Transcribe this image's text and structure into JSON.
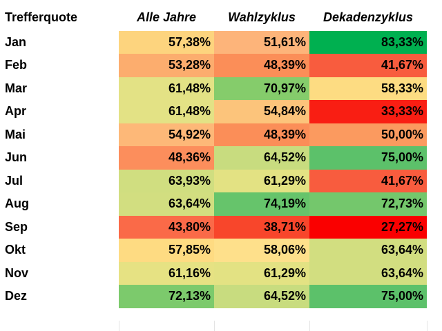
{
  "chart_data": {
    "type": "table",
    "corner_label": "Trefferquote",
    "columns": [
      "Alle Jahre",
      "Wahlzyklus",
      "Dekadenzyklus"
    ],
    "rows": [
      {
        "label": "Jan",
        "values": [
          "57,38%",
          "51,61%",
          "83,33%"
        ],
        "colors": [
          "#fdd47e",
          "#fdb47a",
          "#00b050"
        ]
      },
      {
        "label": "Feb",
        "values": [
          "53,28%",
          "48,39%",
          "41,67%"
        ],
        "colors": [
          "#fcad6e",
          "#fb8e58",
          "#f85c3e"
        ]
      },
      {
        "label": "Mar",
        "values": [
          "61,48%",
          "70,97%",
          "58,33%"
        ],
        "colors": [
          "#e3e285",
          "#85cc6b",
          "#fddc82"
        ]
      },
      {
        "label": "Apr",
        "values": [
          "61,48%",
          "54,84%",
          "33,33%"
        ],
        "colors": [
          "#e3e285",
          "#fcc47b",
          "#f91e13"
        ]
      },
      {
        "label": "Mai",
        "values": [
          "54,92%",
          "48,39%",
          "50,00%"
        ],
        "colors": [
          "#fdb878",
          "#fb8e58",
          "#fb9a5f"
        ]
      },
      {
        "label": "Jun",
        "values": [
          "48,36%",
          "64,52%",
          "75,00%"
        ],
        "colors": [
          "#fc8e5c",
          "#c8dc7f",
          "#5cc16a"
        ]
      },
      {
        "label": "Jul",
        "values": [
          "63,93%",
          "61,29%",
          "41,67%"
        ],
        "colors": [
          "#d0de80",
          "#e3e283",
          "#f85c3e"
        ]
      },
      {
        "label": "Aug",
        "values": [
          "63,64%",
          "74,19%",
          "72,73%"
        ],
        "colors": [
          "#d2de80",
          "#66c46b",
          "#74c76c"
        ]
      },
      {
        "label": "Sep",
        "values": [
          "43,80%",
          "38,71%",
          "27,27%"
        ],
        "colors": [
          "#fa6a48",
          "#f8462b",
          "#fa0000"
        ]
      },
      {
        "label": "Okt",
        "values": [
          "57,85%",
          "58,06%",
          "63,64%"
        ],
        "colors": [
          "#fedb82",
          "#fee08b",
          "#d2de80"
        ]
      },
      {
        "label": "Nov",
        "values": [
          "61,16%",
          "61,29%",
          "63,64%"
        ],
        "colors": [
          "#e6e283",
          "#e3e283",
          "#d2de80"
        ]
      },
      {
        "label": "Dez",
        "values": [
          "72,13%",
          "64,52%",
          "75,00%"
        ],
        "colors": [
          "#7cca6c",
          "#c8dc7f",
          "#5cc16a"
        ]
      }
    ]
  }
}
